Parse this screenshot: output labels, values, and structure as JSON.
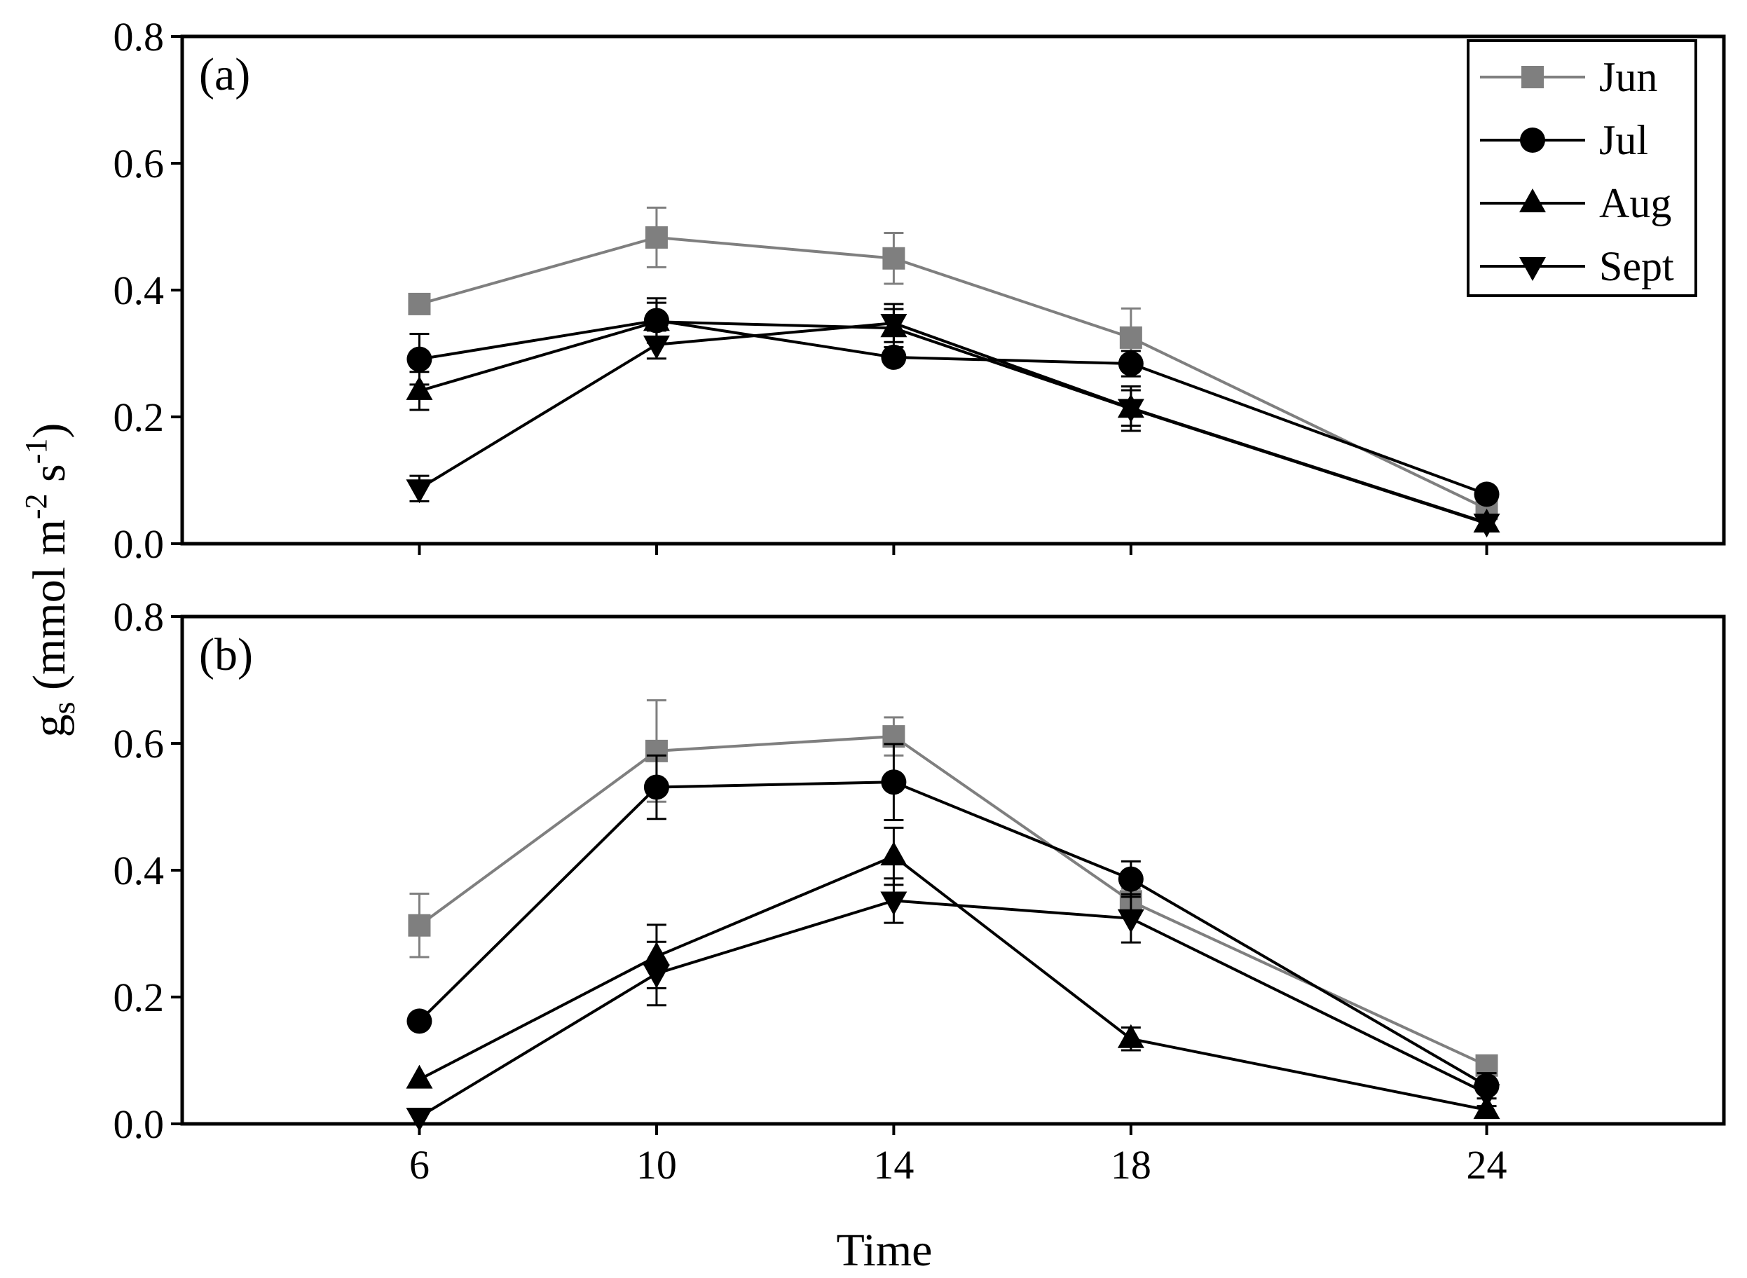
{
  "chart_data": [
    {
      "type": "line",
      "panel_label": "(a)",
      "x": [
        6,
        10,
        14,
        18,
        24
      ],
      "xlim": [
        2,
        28
      ],
      "ylim": [
        0,
        0.8
      ],
      "yticks": [
        "0.0",
        "0.2",
        "0.4",
        "0.6",
        "0.8"
      ],
      "series": [
        {
          "name": "Jun",
          "color": "#7f7f7f",
          "marker": "square",
          "values": [
            0.378,
            0.483,
            0.45,
            0.325,
            0.055
          ],
          "errors": [
            0.0,
            0.047,
            0.04,
            0.046,
            0.0
          ]
        },
        {
          "name": "Jul",
          "color": "#000000",
          "marker": "circle",
          "values": [
            0.291,
            0.352,
            0.294,
            0.284,
            0.078
          ],
          "errors": [
            0.04,
            0.035,
            0.0,
            0.02,
            0.0
          ]
        },
        {
          "name": "Aug",
          "color": "#000000",
          "marker": "triangle-up",
          "values": [
            0.241,
            0.35,
            0.34,
            0.213,
            0.032
          ],
          "errors": [
            0.03,
            0.03,
            0.03,
            0.035,
            0.0
          ]
        },
        {
          "name": "Sept",
          "color": "#000000",
          "marker": "triangle-down",
          "values": [
            0.087,
            0.314,
            0.348,
            0.214,
            0.033
          ],
          "errors": [
            0.02,
            0.022,
            0.03,
            0.028,
            0.0
          ]
        }
      ]
    },
    {
      "type": "line",
      "panel_label": "(b)",
      "x": [
        6,
        10,
        14,
        18,
        24
      ],
      "xlim": [
        2,
        28
      ],
      "ylim": [
        0,
        0.8
      ],
      "xticks": [
        "6",
        "10",
        "14",
        "18",
        "24"
      ],
      "yticks": [
        "0.0",
        "0.2",
        "0.4",
        "0.6",
        "0.8"
      ],
      "series": [
        {
          "name": "Jun",
          "color": "#7f7f7f",
          "marker": "square",
          "values": [
            0.313,
            0.588,
            0.611,
            0.351,
            0.092
          ],
          "errors": [
            0.05,
            0.08,
            0.03,
            0.02,
            0.0
          ]
        },
        {
          "name": "Jul",
          "color": "#000000",
          "marker": "circle",
          "values": [
            0.162,
            0.531,
            0.539,
            0.386,
            0.06
          ],
          "errors": [
            0.0,
            0.05,
            0.06,
            0.028,
            0.02
          ]
        },
        {
          "name": "Aug",
          "color": "#000000",
          "marker": "triangle-up",
          "values": [
            0.07,
            0.264,
            0.422,
            0.134,
            0.022
          ],
          "errors": [
            0.0,
            0.05,
            0.045,
            0.018,
            0.0
          ]
        },
        {
          "name": "Sept",
          "color": "#000000",
          "marker": "triangle-down",
          "values": [
            0.011,
            0.237,
            0.352,
            0.324,
            0.048
          ],
          "errors": [
            0.0,
            0.05,
            0.035,
            0.038,
            0.02
          ]
        }
      ]
    }
  ],
  "legend": [
    "Jun",
    "Jul",
    "Aug",
    "Sept"
  ],
  "xlabel": "Time",
  "ylabel": {
    "main": "g",
    "sub": "s",
    "units_open": " (mmol m",
    "exp1": "-2",
    "mid": " s",
    "exp2": "-1",
    "close": ")"
  }
}
